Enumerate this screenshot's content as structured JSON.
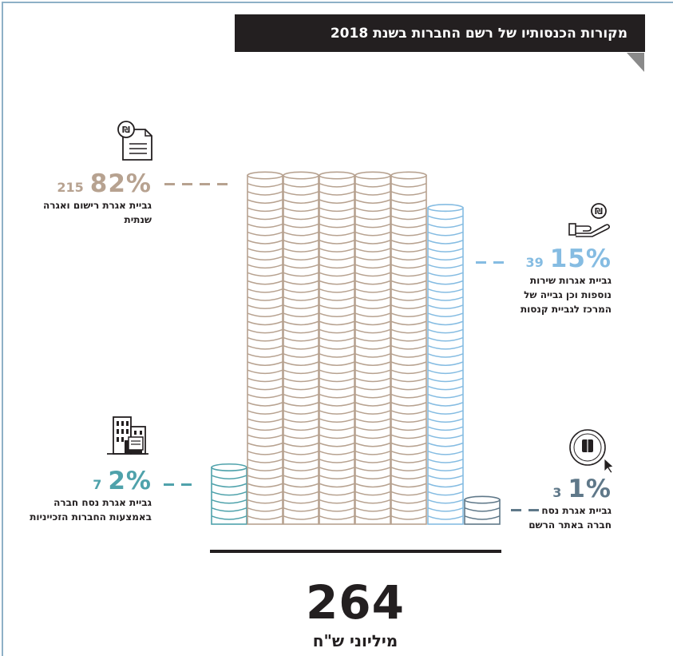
{
  "title": "מקורות הכנסותיו של רשם החברות בשנת 2018",
  "total": {
    "value": "264",
    "unit": "מיליוני ש\"ח"
  },
  "colors": {
    "tan": "#b7a290",
    "light_blue": "#85bce2",
    "teal": "#4fa2ab",
    "slate": "#5f7889",
    "dark": "#231f20"
  },
  "chart_data": {
    "type": "bar",
    "title": "מקורות הכנסותיו של רשם החברות בשנת 2018",
    "unit": "מיליוני ש\"ח",
    "total": 264,
    "categories": [
      "גביית אגרת נסח חברה באמצעות החברות הזכייניות",
      "גביית אגרת רישום ואגרה שנתית",
      "גביית אגרות שירות נוספות וכן גבייה של המרכז לגביית קנסות",
      "גביית אגרת נסח חברה באתר הרשם"
    ],
    "values": [
      7,
      215,
      39,
      3
    ],
    "percents": [
      "2%",
      "82%",
      "15%",
      "1%"
    ]
  },
  "annotations": {
    "registration": {
      "percent": "82%",
      "amount": "215",
      "label": "גביית אגרת רישום ואגרה שנתית"
    },
    "services": {
      "percent": "15%",
      "amount": "39",
      "label_lines": [
        "גביית אגרות שירות",
        "נוספות וכן גבייה של",
        "המרכז לגביית קנסות"
      ]
    },
    "franchise": {
      "percent": "2%",
      "amount": "7",
      "label_lines": [
        "גביית אגרת נסח חברה",
        "באמצעות החברות הזכייניות"
      ]
    },
    "website": {
      "percent": "1%",
      "amount": "3",
      "label_lines": [
        "גביית אגרת נסח",
        "חברה באתר הרשם"
      ]
    }
  },
  "icons": [
    "shekel-document-icon",
    "shekel-hand-icon",
    "office-building-icon",
    "state-emblem-seal-icon"
  ]
}
